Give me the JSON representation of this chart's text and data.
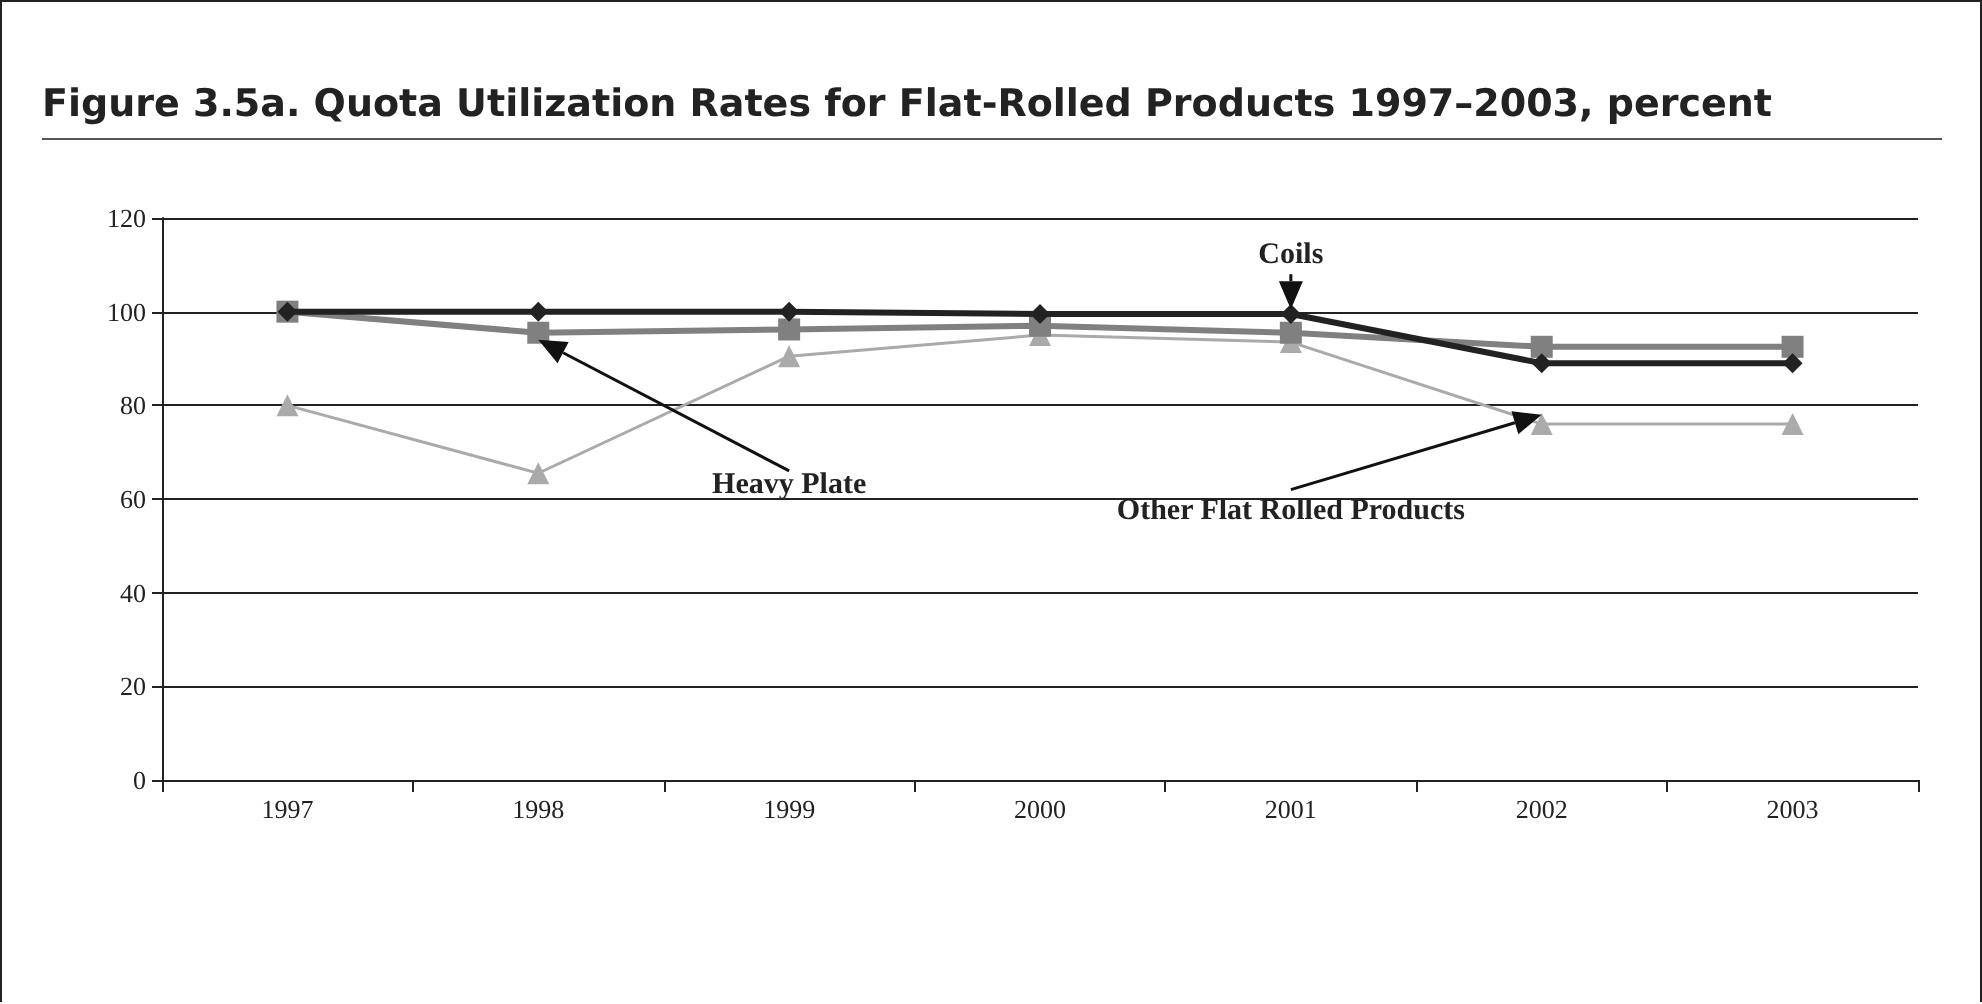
{
  "chart_data": {
    "type": "line",
    "title": "Figure 3.5a.  Quota Utilization Rates for Flat-Rolled Products 1997–2003, percent",
    "categories": [
      "1997",
      "1998",
      "1999",
      "2000",
      "2001",
      "2002",
      "2003"
    ],
    "series": [
      {
        "name": "Coils",
        "color": "#222222",
        "marker": "diamond",
        "values": [
          100,
          100,
          100,
          99.5,
          99.5,
          89,
          89
        ]
      },
      {
        "name": "Heavy Plate",
        "color": "#808080",
        "marker": "square",
        "values": [
          100,
          95.5,
          96.2,
          97,
          95.5,
          92.5,
          92.5
        ]
      },
      {
        "name": "Other Flat Rolled Products",
        "color": "#aaaaaa",
        "marker": "triangle",
        "values": [
          80,
          65.5,
          90.5,
          95,
          93.5,
          76,
          76
        ]
      }
    ],
    "ylim": [
      0,
      120
    ],
    "yticks": [
      0,
      20,
      40,
      60,
      80,
      100,
      120
    ],
    "grid": "y",
    "legend": false
  }
}
